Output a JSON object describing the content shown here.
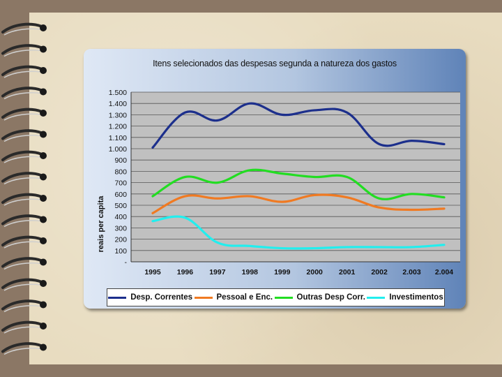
{
  "colors": {
    "desp_correntes": "#1c2f8c",
    "pessoal": "#f07a22",
    "outras": "#22dd22",
    "investimentos": "#22eeee",
    "plot_bg": "#c0c0c0"
  },
  "chart_data": {
    "type": "line",
    "title": "Itens selecionados das despesas segunda a natureza dos gastos",
    "ylabel": "reais per capita",
    "xlabel": "",
    "categories": [
      "1995",
      "1996",
      "1997",
      "1998",
      "1999",
      "2000",
      "2001",
      "2002",
      "2.003",
      "2.004"
    ],
    "ylim": [
      0,
      1500
    ],
    "yticks": [
      {
        "value": 0,
        "label": "-"
      },
      {
        "value": 100,
        "label": "100"
      },
      {
        "value": 200,
        "label": "200"
      },
      {
        "value": 300,
        "label": "300"
      },
      {
        "value": 400,
        "label": "400"
      },
      {
        "value": 500,
        "label": "500"
      },
      {
        "value": 600,
        "label": "600"
      },
      {
        "value": 700,
        "label": "700"
      },
      {
        "value": 800,
        "label": "800"
      },
      {
        "value": 900,
        "label": "900"
      },
      {
        "value": 1000,
        "label": "1.000"
      },
      {
        "value": 1100,
        "label": "1.100"
      },
      {
        "value": 1200,
        "label": "1.200"
      },
      {
        "value": 1300,
        "label": "1.300"
      },
      {
        "value": 1400,
        "label": "1.400"
      },
      {
        "value": 1500,
        "label": "1.500"
      }
    ],
    "grid": true,
    "legend_position": "bottom",
    "series": [
      {
        "name": "Desp. Correntes",
        "color_key": "desp_correntes",
        "values": [
          1010,
          1320,
          1250,
          1400,
          1300,
          1340,
          1320,
          1040,
          1070,
          1040
        ]
      },
      {
        "name": "Pessoal e Enc.",
        "color_key": "pessoal",
        "values": [
          430,
          580,
          560,
          580,
          530,
          590,
          570,
          480,
          460,
          470
        ]
      },
      {
        "name": "Outras Desp Corr.",
        "color_key": "outras",
        "values": [
          580,
          750,
          700,
          810,
          780,
          750,
          750,
          560,
          600,
          570
        ]
      },
      {
        "name": "Investimentos",
        "color_key": "investimentos",
        "values": [
          360,
          390,
          170,
          140,
          120,
          120,
          130,
          130,
          130,
          150
        ]
      }
    ]
  }
}
